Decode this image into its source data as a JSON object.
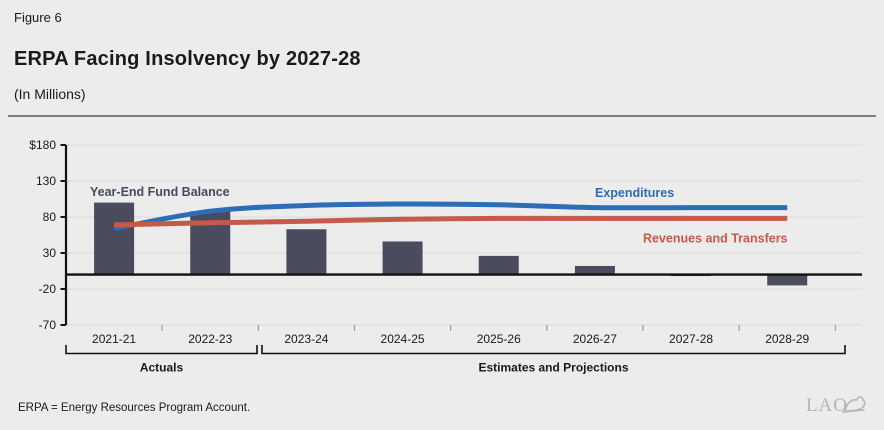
{
  "page": {
    "figure_label": "Figure 6",
    "title": "ERPA Facing Insolvency by 2027-28",
    "subtitle": "(In Millions)",
    "footnote": "ERPA = Energy Resources Program Account.",
    "logo_text": "LAO"
  },
  "colors": {
    "background": "#ebeceb",
    "gridline": "#dcdddc",
    "axis": "#111111",
    "bar": "#4a4b5d",
    "expenditures_blue": "#2d6db5",
    "revenues_red": "#c35a4b",
    "fund_balance_label": "#47495f",
    "divider_gray": "#7c7e7d",
    "logo_gray": "#b4b6b5",
    "category_tick": "#9a9c9b"
  },
  "chart_data": {
    "type": "bar+line combo",
    "title": "ERPA Facing Insolvency by 2027-28",
    "units_label": "(In Millions)",
    "categories": [
      "2021-21",
      "2022-23",
      "2023-24",
      "2024-25",
      "2025-26",
      "2026-27",
      "2027-28",
      "2028-29"
    ],
    "series": [
      {
        "name": "Year-End Fund Balance",
        "kind": "bar",
        "color": "#4a4b5d",
        "label_color": "#47495f",
        "values": [
          100,
          88,
          63,
          46,
          26,
          12,
          -2,
          -15
        ]
      },
      {
        "name": "Expenditures",
        "kind": "line",
        "color": "#2d6db5",
        "label_color": "#2d6db5",
        "values": [
          64,
          88,
          96,
          98,
          97,
          93,
          93,
          93
        ]
      },
      {
        "name": "Revenues and Transfers",
        "kind": "line",
        "color": "#c35a4b",
        "label_color": "#c35a4b",
        "values": [
          69,
          72,
          74,
          77,
          78,
          78,
          78,
          78
        ]
      }
    ],
    "y_ticks": [
      180,
      130,
      80,
      30,
      -20,
      -70
    ],
    "y_tick_labels": [
      "$180",
      "130",
      "80",
      "30",
      "-20",
      "-70"
    ],
    "ylim": [
      -70,
      180
    ],
    "grid": "horizontal",
    "legend": "inline series labels",
    "x_groups": [
      {
        "label": "Actuals",
        "start": 0,
        "end": 1
      },
      {
        "label": "Estimates and Projections",
        "start": 2,
        "end": 7
      }
    ]
  }
}
